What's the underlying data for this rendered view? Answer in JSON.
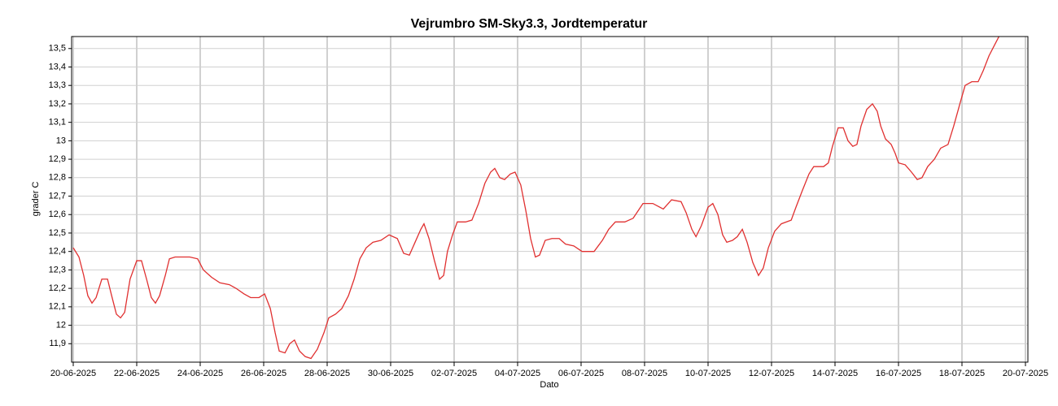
{
  "chart_data": {
    "type": "line",
    "title": "Vejrumbro SM-Sky3.3, Jordtemperatur",
    "x_label": "Dato",
    "y_label": "grader C",
    "color": "#e03030",
    "grid": true,
    "xlim": [
      0,
      30
    ],
    "xticks": [
      {
        "value": 0,
        "label": "20-06-2025"
      },
      {
        "value": 2,
        "label": "22-06-2025"
      },
      {
        "value": 4,
        "label": "24-06-2025"
      },
      {
        "value": 6,
        "label": "26-06-2025"
      },
      {
        "value": 8,
        "label": "28-06-2025"
      },
      {
        "value": 10,
        "label": "30-06-2025"
      },
      {
        "value": 12,
        "label": "02-07-2025"
      },
      {
        "value": 14,
        "label": "04-07-2025"
      },
      {
        "value": 16,
        "label": "06-07-2025"
      },
      {
        "value": 18,
        "label": "08-07-2025"
      },
      {
        "value": 20,
        "label": "10-07-2025"
      },
      {
        "value": 22,
        "label": "12-07-2025"
      },
      {
        "value": 24,
        "label": "14-07-2025"
      },
      {
        "value": 26,
        "label": "16-07-2025"
      },
      {
        "value": 28,
        "label": "18-07-2025"
      },
      {
        "value": 30,
        "label": "20-07-2025"
      }
    ],
    "ylim": [
      11.8,
      13.565
    ],
    "yticks": [
      {
        "value": 11.9,
        "label": "11,9"
      },
      12,
      {
        "value": 12.1,
        "label": "12,1"
      },
      {
        "value": 12.2,
        "label": "12,2"
      },
      {
        "value": 12.3,
        "label": "12,3"
      },
      {
        "value": 12.4,
        "label": "12,4"
      },
      {
        "value": 12.5,
        "label": "12,5"
      },
      {
        "value": 12.6,
        "label": "12,6"
      },
      {
        "value": 12.7,
        "label": "12,7"
      },
      {
        "value": 12.8,
        "label": "12,8"
      },
      {
        "value": 12.9,
        "label": "12,9"
      },
      13,
      {
        "value": 13.1,
        "label": "13,1"
      },
      {
        "value": 13.2,
        "label": "13,2"
      },
      {
        "value": 13.3,
        "label": "13,3"
      },
      {
        "value": 13.4,
        "label": "13,4"
      },
      {
        "value": 13.5,
        "label": "13,5"
      }
    ],
    "x": [
      0,
      0.18,
      0.33,
      0.46,
      0.59,
      0.72,
      0.9,
      1.08,
      1.21,
      1.36,
      1.49,
      1.62,
      1.79,
      2.0,
      2.15,
      2.31,
      2.46,
      2.59,
      2.72,
      2.9,
      3.03,
      3.21,
      3.41,
      3.67,
      3.92,
      4.1,
      4.36,
      4.62,
      4.92,
      5.13,
      5.38,
      5.59,
      5.85,
      6.03,
      6.21,
      6.36,
      6.49,
      6.67,
      6.82,
      6.97,
      7.13,
      7.31,
      7.49,
      7.69,
      7.9,
      8.05,
      8.26,
      8.46,
      8.67,
      8.85,
      9.03,
      9.23,
      9.44,
      9.69,
      9.95,
      10.21,
      10.41,
      10.59,
      10.77,
      10.95,
      11.05,
      11.21,
      11.38,
      11.54,
      11.67,
      11.79,
      11.95,
      12.1,
      12.36,
      12.56,
      12.77,
      12.97,
      13.15,
      13.28,
      13.44,
      13.59,
      13.77,
      13.92,
      14.1,
      14.26,
      14.41,
      14.56,
      14.69,
      14.87,
      15.08,
      15.31,
      15.51,
      15.77,
      16.03,
      16.41,
      16.67,
      16.87,
      17.08,
      17.38,
      17.64,
      17.95,
      18.26,
      18.59,
      18.85,
      19.15,
      19.31,
      19.49,
      19.62,
      19.79,
      20.0,
      20.15,
      20.31,
      20.46,
      20.59,
      20.77,
      20.92,
      21.08,
      21.23,
      21.41,
      21.59,
      21.74,
      21.9,
      22.1,
      22.31,
      22.62,
      22.77,
      22.97,
      23.18,
      23.33,
      23.64,
      23.79,
      23.92,
      24.1,
      24.26,
      24.41,
      24.56,
      24.69,
      24.82,
      25.0,
      25.18,
      25.33,
      25.44,
      25.59,
      25.77,
      25.9,
      26.0,
      26.21,
      26.41,
      26.59,
      26.74,
      26.92,
      27.13,
      27.33,
      27.56,
      27.74,
      27.95,
      28.1,
      28.31,
      28.51,
      28.67,
      28.85,
      29.03,
      29.18
    ],
    "values": [
      12.42,
      12.37,
      12.27,
      12.16,
      12.12,
      12.15,
      12.25,
      12.25,
      12.16,
      12.06,
      12.04,
      12.07,
      12.25,
      12.35,
      12.35,
      12.25,
      12.15,
      12.12,
      12.16,
      12.27,
      12.36,
      12.37,
      12.37,
      12.37,
      12.36,
      12.3,
      12.26,
      12.23,
      12.22,
      12.2,
      12.17,
      12.15,
      12.15,
      12.17,
      12.09,
      11.96,
      11.86,
      11.85,
      11.9,
      11.92,
      11.86,
      11.83,
      11.82,
      11.87,
      11.96,
      12.04,
      12.06,
      12.09,
      12.16,
      12.25,
      12.36,
      12.42,
      12.45,
      12.46,
      12.49,
      12.47,
      12.39,
      12.38,
      12.45,
      12.52,
      12.55,
      12.47,
      12.35,
      12.25,
      12.27,
      12.4,
      12.49,
      12.56,
      12.56,
      12.57,
      12.66,
      12.77,
      12.83,
      12.85,
      12.8,
      12.79,
      12.82,
      12.83,
      12.76,
      12.62,
      12.47,
      12.37,
      12.38,
      12.46,
      12.47,
      12.47,
      12.44,
      12.43,
      12.4,
      12.4,
      12.46,
      12.52,
      12.56,
      12.56,
      12.58,
      12.66,
      12.66,
      12.63,
      12.68,
      12.67,
      12.61,
      12.52,
      12.48,
      12.54,
      12.64,
      12.66,
      12.6,
      12.49,
      12.45,
      12.46,
      12.48,
      12.52,
      12.45,
      12.34,
      12.27,
      12.31,
      12.42,
      12.51,
      12.55,
      12.57,
      12.64,
      12.73,
      12.82,
      12.86,
      12.86,
      12.88,
      12.97,
      13.07,
      13.07,
      13.0,
      12.97,
      12.98,
      13.08,
      13.17,
      13.2,
      13.16,
      13.08,
      13.01,
      12.98,
      12.93,
      12.88,
      12.87,
      12.83,
      12.79,
      12.8,
      12.86,
      12.9,
      12.96,
      12.98,
      13.08,
      13.21,
      13.3,
      13.32,
      13.32,
      13.38,
      13.46,
      13.52,
      13.57
    ]
  }
}
